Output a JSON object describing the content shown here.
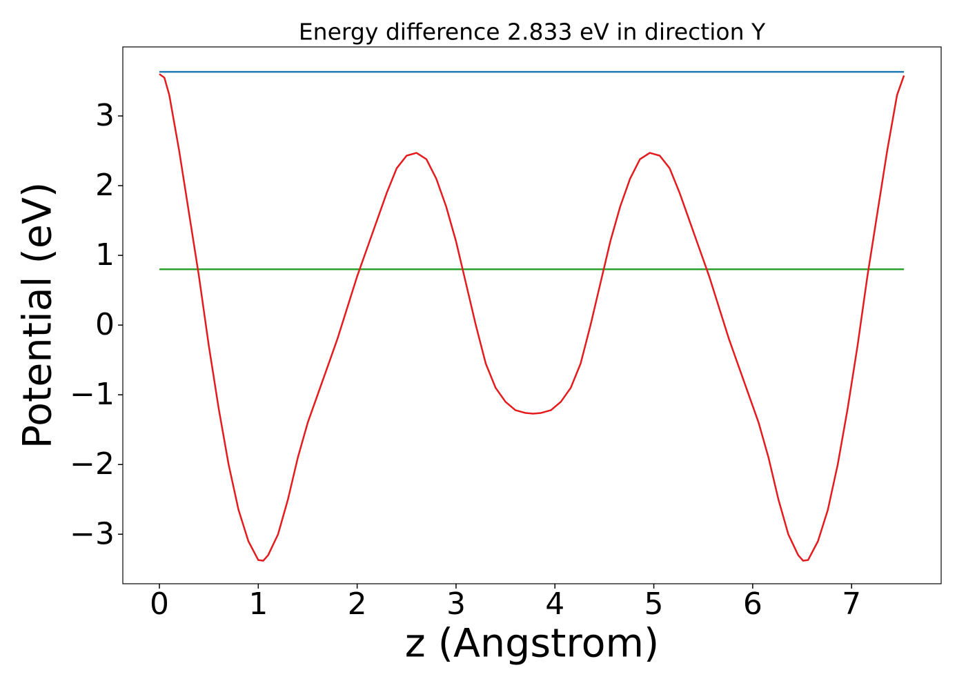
{
  "chart_data": {
    "type": "line",
    "title": "Energy difference 2.833 eV in direction Y",
    "x_label": "z (Angstrom)",
    "y_label": "Potential (eV)",
    "xlim": [
      -0.37,
      7.906
    ],
    "ylim": [
      -3.71,
      3.99
    ],
    "xticks": [
      0,
      1,
      2,
      3,
      4,
      5,
      6,
      7
    ],
    "yticks": [
      {
        "value": -3,
        "label": "−3"
      },
      {
        "value": -2,
        "label": "−2"
      },
      {
        "value": -1,
        "label": "−1"
      },
      0,
      1,
      2,
      3
    ],
    "grid": false,
    "series": [
      {
        "color": "#1f77b4",
        "x": [
          0,
          7.53
        ],
        "values": [
          3.633,
          3.633
        ]
      },
      {
        "color": "#2ca02c",
        "x": [
          0,
          7.53
        ],
        "values": [
          0.8,
          0.8
        ]
      },
      {
        "color": "#e41a1c",
        "x": [
          0,
          0.05,
          0.1,
          0.2,
          0.3,
          0.4,
          0.5,
          0.6,
          0.7,
          0.8,
          0.9,
          1.0,
          1.05,
          1.1,
          1.2,
          1.3,
          1.4,
          1.5,
          1.6,
          1.7,
          1.8,
          1.9,
          2.0,
          2.1,
          2.2,
          2.3,
          2.4,
          2.5,
          2.6,
          2.7,
          2.8,
          2.9,
          3.0,
          3.1,
          3.2,
          3.3,
          3.4,
          3.5,
          3.6,
          3.7,
          3.78,
          3.86,
          3.96,
          4.06,
          4.16,
          4.26,
          4.36,
          4.46,
          4.56,
          4.66,
          4.76,
          4.86,
          4.96,
          5.06,
          5.16,
          5.26,
          5.36,
          5.46,
          5.56,
          5.66,
          5.76,
          5.86,
          5.96,
          6.06,
          6.16,
          6.26,
          6.36,
          6.46,
          6.51,
          6.56,
          6.66,
          6.76,
          6.86,
          6.96,
          7.06,
          7.16,
          7.26,
          7.36,
          7.46,
          7.53
        ],
        "values": [
          3.6,
          3.55,
          3.3,
          2.5,
          1.6,
          0.7,
          -0.3,
          -1.2,
          -2.0,
          -2.65,
          -3.1,
          -3.37,
          -3.38,
          -3.3,
          -3.0,
          -2.5,
          -1.9,
          -1.4,
          -1.0,
          -0.6,
          -0.2,
          0.25,
          0.7,
          1.1,
          1.5,
          1.9,
          2.25,
          2.43,
          2.47,
          2.38,
          2.1,
          1.7,
          1.2,
          0.6,
          0.0,
          -0.55,
          -0.9,
          -1.1,
          -1.22,
          -1.26,
          -1.27,
          -1.26,
          -1.22,
          -1.1,
          -0.9,
          -0.55,
          0.0,
          0.6,
          1.2,
          1.7,
          2.1,
          2.38,
          2.47,
          2.43,
          2.25,
          1.9,
          1.5,
          1.1,
          0.7,
          0.25,
          -0.2,
          -0.6,
          -1.0,
          -1.4,
          -1.9,
          -2.5,
          -3.0,
          -3.3,
          -3.38,
          -3.37,
          -3.1,
          -2.65,
          -2.0,
          -1.2,
          -0.3,
          0.7,
          1.6,
          2.5,
          3.3,
          3.58
        ]
      }
    ]
  }
}
